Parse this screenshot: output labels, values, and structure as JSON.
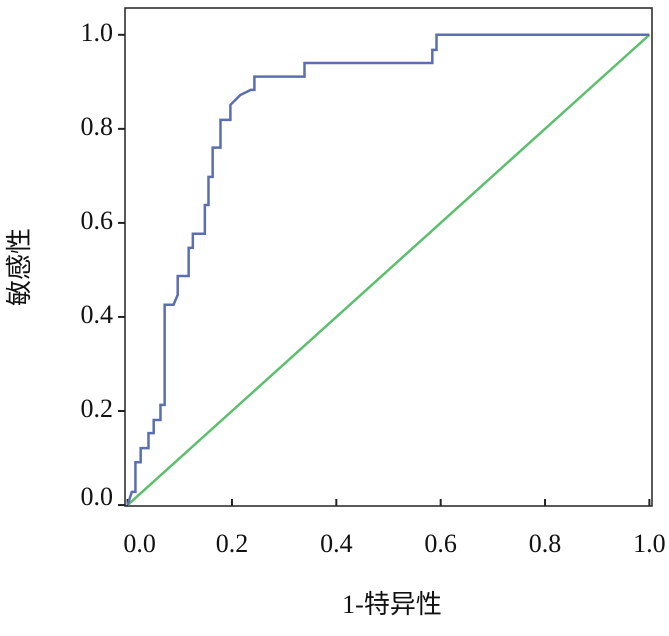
{
  "chart_data": {
    "type": "line",
    "x_label": "1-特异性",
    "y_label": "敏感性",
    "xlim": [
      -0.005,
      1.005
    ],
    "ylim": [
      -0.002,
      1.057
    ],
    "xticks": [
      {
        "value": 0,
        "label": "0.0"
      },
      {
        "value": 0.2,
        "label": "0.2"
      },
      {
        "value": 0.4,
        "label": "0.4"
      },
      {
        "value": 0.6,
        "label": "0.6"
      },
      {
        "value": 0.8,
        "label": "0.8"
      },
      {
        "value": 1,
        "label": "1.0"
      }
    ],
    "yticks": [
      {
        "value": 0,
        "label": "0.0"
      },
      {
        "value": 0.2,
        "label": "0.2"
      },
      {
        "value": 0.4,
        "label": "0.4"
      },
      {
        "value": 0.6,
        "label": "0.6"
      },
      {
        "value": 0.8,
        "label": "0.8"
      },
      {
        "value": 1,
        "label": "1.0"
      }
    ],
    "series": [
      {
        "color": "#5a6eb0",
        "x": [
          0,
          0.008,
          0.015,
          0.015,
          0.025,
          0.025,
          0.04,
          0.04,
          0.05,
          0.05,
          0.063,
          0.063,
          0.071,
          0.071,
          0.088,
          0.096,
          0.096,
          0.117,
          0.117,
          0.125,
          0.125,
          0.148,
          0.148,
          0.155,
          0.155,
          0.163,
          0.163,
          0.178,
          0.178,
          0.197,
          0.197,
          0.216,
          0.236,
          0.243,
          0.243,
          0.339,
          0.339,
          0.584,
          0.584,
          0.592,
          0.592,
          1.0
        ],
        "values": [
          0,
          0.028,
          0.028,
          0.091,
          0.091,
          0.121,
          0.121,
          0.153,
          0.153,
          0.181,
          0.181,
          0.213,
          0.213,
          0.426,
          0.426,
          0.447,
          0.487,
          0.487,
          0.547,
          0.547,
          0.577,
          0.577,
          0.638,
          0.638,
          0.698,
          0.698,
          0.76,
          0.76,
          0.819,
          0.819,
          0.851,
          0.872,
          0.883,
          0.883,
          0.911,
          0.911,
          0.94,
          0.94,
          0.968,
          0.968,
          1.0,
          1.0
        ]
      },
      {
        "color": "#5cbf6e",
        "x": [
          0,
          1
        ],
        "values": [
          0,
          1
        ]
      }
    ]
  }
}
